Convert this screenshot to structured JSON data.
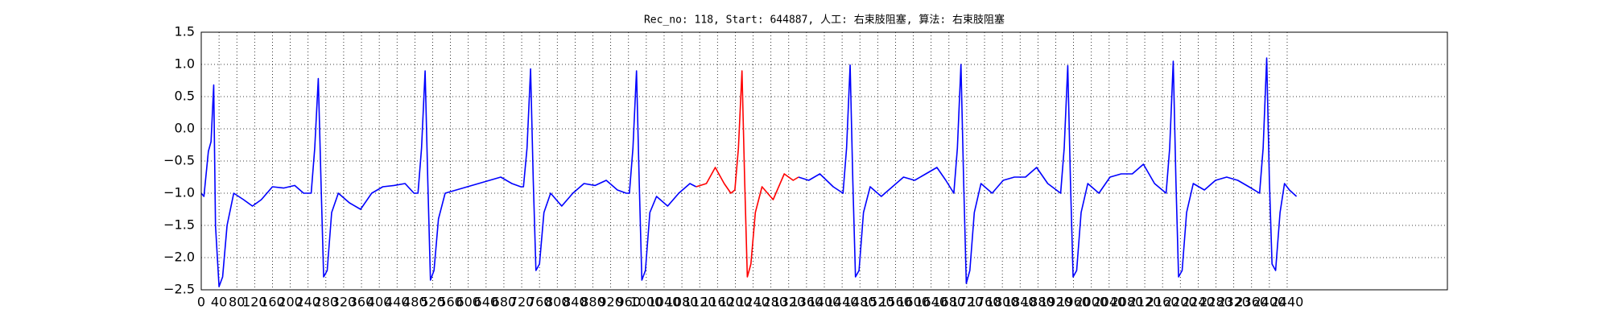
{
  "chart_data": {
    "type": "line",
    "title": "Rec_no: 118, Start: 644887, 人工: 右束肢阻塞, 算法: 右束肢阻塞",
    "xlim": [
      0,
      2800
    ],
    "ylim": [
      -2.5,
      1.5
    ],
    "xticks": [
      0,
      40,
      80,
      120,
      160,
      200,
      240,
      280,
      320,
      360,
      400,
      440,
      480,
      520,
      560,
      600,
      640,
      680,
      720,
      760,
      800,
      840,
      880,
      920,
      960,
      1000,
      1040,
      1080,
      1120,
      1160,
      1200,
      1240,
      1280,
      1320,
      1360,
      1400,
      1440,
      1480,
      1520,
      1560,
      1600,
      1640,
      1680,
      1720,
      1760,
      1800,
      1840,
      1880,
      1920,
      1960,
      2000,
      2040,
      2080,
      2120,
      2160,
      2200,
      2240,
      2280,
      2320,
      2360,
      2400,
      2440
    ],
    "yticks": [
      {
        "value": -2.5,
        "label": "−2.5"
      },
      {
        "value": -2.0,
        "label": "−2.0"
      },
      {
        "value": -1.5,
        "label": "−1.5"
      },
      {
        "value": -1.0,
        "label": "−1.0"
      },
      {
        "value": -0.5,
        "label": "−0.5"
      },
      {
        "value": 0.0,
        "label": "0.0"
      },
      0.5,
      {
        "value": 1.0,
        "label": "1.0"
      },
      1.5
    ],
    "grid": true,
    "series": [
      {
        "color": "#0000ff",
        "x": [
          0,
          6,
          16,
          22,
          28,
          32,
          40,
          48,
          58,
          73,
          95,
          115,
          135,
          160,
          185,
          210,
          230,
          247,
          255,
          263,
          269,
          275,
          283,
          293,
          308,
          333,
          358,
          383,
          408,
          433,
          458,
          478,
          487,
          495,
          503,
          509,
          515,
          523,
          533,
          548,
          573,
          598,
          623,
          648,
          673,
          698,
          718,
          724,
          732,
          740,
          746,
          752,
          760,
          770,
          785,
          810,
          835,
          860,
          885,
          910,
          935,
          955,
          962,
          970,
          978,
          984,
          990,
          998,
          1008,
          1023,
          1048,
          1073,
          1098,
          1112,
          null,
          1342,
          1365,
          1390,
          1420,
          1442,
          1450,
          1458,
          1464,
          1470,
          1478,
          1488,
          1503,
          1528,
          1553,
          1578,
          1603,
          1628,
          1653,
          1673,
          1691,
          1699,
          1707,
          1713,
          1719,
          1727,
          1737,
          1752,
          1777,
          1802,
          1827,
          1852,
          1877,
          1902,
          1931,
          1939,
          1947,
          1953,
          1959,
          1967,
          1977,
          1992,
          2017,
          2042,
          2067,
          2092,
          2117,
          2142,
          2168,
          2176,
          2184,
          2190,
          2196,
          2204,
          2214,
          2229,
          2254,
          2279,
          2304,
          2329,
          2354,
          2378,
          2386,
          2394,
          2400,
          2406,
          2414,
          2424,
          2434,
          2445,
          2461
        ],
        "values": [
          -1.0,
          -1.05,
          -0.35,
          -0.2,
          0.68,
          -1.5,
          -2.45,
          -2.3,
          -1.5,
          -1.0,
          -1.1,
          -1.2,
          -1.1,
          -0.9,
          -0.92,
          -0.88,
          -1.0,
          -1.0,
          -0.3,
          0.78,
          -0.8,
          -2.3,
          -2.2,
          -1.3,
          -1.0,
          -1.15,
          -1.25,
          -1.0,
          -0.9,
          -0.88,
          -0.85,
          -1.0,
          -1.0,
          -0.3,
          0.9,
          -0.8,
          -2.35,
          -2.2,
          -1.4,
          -1.0,
          -0.95,
          -0.9,
          -0.85,
          -0.8,
          -0.75,
          -0.85,
          -0.9,
          -0.9,
          -0.3,
          0.93,
          -0.8,
          -2.2,
          -2.1,
          -1.3,
          -1.0,
          -1.2,
          -1.0,
          -0.85,
          -0.88,
          -0.8,
          -0.95,
          -1.0,
          -1.0,
          -0.3,
          0.9,
          -0.8,
          -2.35,
          -2.2,
          -1.3,
          -1.05,
          -1.2,
          -1.0,
          -0.85,
          -0.9,
          null,
          -0.75,
          -0.8,
          -0.7,
          -0.9,
          -1.0,
          -0.3,
          0.99,
          -0.8,
          -2.3,
          -2.2,
          -1.3,
          -0.9,
          -1.05,
          -0.9,
          -0.75,
          -0.8,
          -0.7,
          -0.6,
          -0.8,
          -1.0,
          -0.3,
          1.0,
          -0.8,
          -2.4,
          -2.2,
          -1.3,
          -0.85,
          -1.0,
          -0.8,
          -0.75,
          -0.75,
          -0.6,
          -0.85,
          -1.0,
          -0.3,
          0.98,
          -0.8,
          -2.3,
          -2.2,
          -1.3,
          -0.85,
          -1.0,
          -0.75,
          -0.7,
          -0.7,
          -0.55,
          -0.85,
          -1.0,
          -0.3,
          1.05,
          -0.8,
          -2.3,
          -2.2,
          -1.3,
          -0.85,
          -0.95,
          -0.8,
          -0.75,
          -0.8,
          -0.9,
          -1.0,
          -0.3,
          1.1,
          -0.8,
          -2.1,
          -2.2,
          -1.3,
          -0.85,
          -0.95,
          -1.05
        ]
      },
      {
        "color": "#ff0000",
        "x": [
          1112,
          1135,
          1155,
          1175,
          1190,
          1199,
          1207,
          1215,
          1221,
          1227,
          1235,
          1245,
          1260,
          1285,
          1310,
          1330,
          1342
        ],
        "values": [
          -0.9,
          -0.85,
          -0.6,
          -0.85,
          -1.0,
          -0.95,
          -0.3,
          0.9,
          -0.8,
          -2.3,
          -2.1,
          -1.3,
          -0.9,
          -1.1,
          -0.7,
          -0.8,
          -0.75
        ]
      }
    ]
  }
}
